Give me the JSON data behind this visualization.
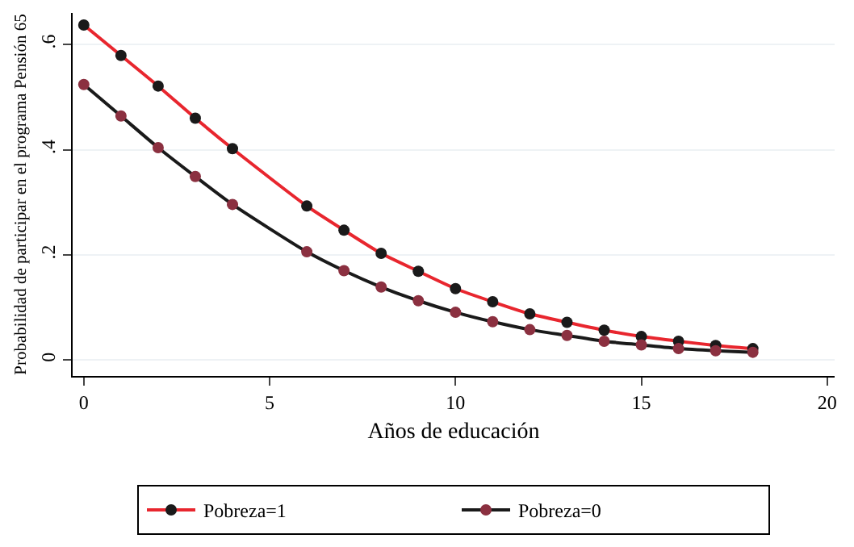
{
  "chart_data": {
    "type": "line",
    "xlabel": "Años de educación",
    "ylabel": "Probabilidad de participar en el programa Pensión 65",
    "x": [
      0,
      1,
      2,
      3,
      4,
      6,
      7,
      8,
      9,
      10,
      11,
      12,
      13,
      14,
      15,
      16,
      17,
      18
    ],
    "xlim": [
      -0.3,
      20.2
    ],
    "xticks": [
      0,
      5,
      10,
      15,
      20
    ],
    "ylim": [
      -0.03,
      0.66
    ],
    "yticks": [
      {
        "value": 0,
        "label": "0"
      },
      {
        "value": 0.2,
        "label": ".2"
      },
      {
        "value": 0.4,
        "label": ".4"
      },
      {
        "value": 0.6,
        "label": ".6"
      }
    ],
    "grid": "y",
    "legend": "bottom",
    "marker": "circle",
    "line_style": "solid",
    "series": [
      {
        "name": "Pobreza=1",
        "color": "#e8262e",
        "colors": [
          "#1a1a1a",
          "#1a1a1a",
          "#1a1a1a",
          "#1a1a1a",
          "#1a1a1a",
          "#1a1a1a",
          "#1a1a1a",
          "#1a1a1a",
          "#1a1a1a",
          "#1a1a1a",
          "#1a1a1a",
          "#1a1a1a",
          "#1a1a1a",
          "#1a1a1a",
          "#1a1a1a",
          "#1a1a1a",
          "#1a1a1a",
          "#1a1a1a"
        ],
        "values": [
          0.637,
          0.579,
          0.521,
          0.46,
          0.402,
          0.293,
          0.247,
          0.203,
          0.169,
          0.136,
          0.111,
          0.088,
          0.072,
          0.057,
          0.045,
          0.036,
          0.028,
          0.022
        ]
      },
      {
        "name": "Pobreza=0",
        "color": "#1a1a1a",
        "colors": [
          "#8b3040",
          "#8b3040",
          "#8b3040",
          "#8b3040",
          "#8b3040",
          "#8b3040",
          "#8b3040",
          "#8b3040",
          "#8b3040",
          "#8b3040",
          "#8b3040",
          "#8b3040",
          "#8b3040",
          "#8b3040",
          "#8b3040",
          "#8b3040",
          "#8b3040",
          "#8b3040"
        ],
        "values": [
          0.524,
          0.464,
          0.404,
          0.349,
          0.296,
          0.206,
          0.17,
          0.139,
          0.113,
          0.091,
          0.073,
          0.058,
          0.047,
          0.036,
          0.029,
          0.022,
          0.018,
          0.015
        ]
      }
    ]
  }
}
